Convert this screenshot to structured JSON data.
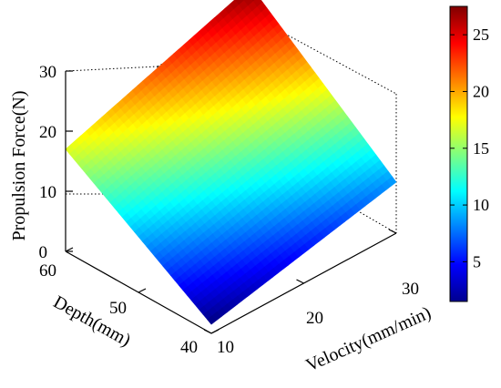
{
  "chart_data": {
    "type": "surface",
    "title": "",
    "xlabel": "Velocity(mm/min)",
    "ylabel": "Depth(mm)",
    "zlabel": "Propulsion Force(N)",
    "x_ticks": [
      "10",
      "20",
      "30"
    ],
    "y_ticks": [
      "40",
      "50",
      "60"
    ],
    "z_ticks": [
      "0",
      "10",
      "20",
      "30"
    ],
    "xlim": [
      10,
      30
    ],
    "ylim": [
      40,
      60
    ],
    "zlim": [
      0,
      30
    ],
    "corners": [
      {
        "velocity": 10,
        "depth": 40,
        "force": 1.5
      },
      {
        "velocity": 30,
        "depth": 40,
        "force": 8.5
      },
      {
        "velocity": 10,
        "depth": 60,
        "force": 17
      },
      {
        "velocity": 30,
        "depth": 60,
        "force": 27.5
      }
    ],
    "colormap": "jet",
    "colorbar": {
      "range": [
        1.5,
        27.5
      ],
      "ticks": [
        "5",
        "10",
        "15",
        "20",
        "25"
      ],
      "tick_values": [
        5,
        10,
        15,
        20,
        25
      ]
    },
    "grid": true
  }
}
